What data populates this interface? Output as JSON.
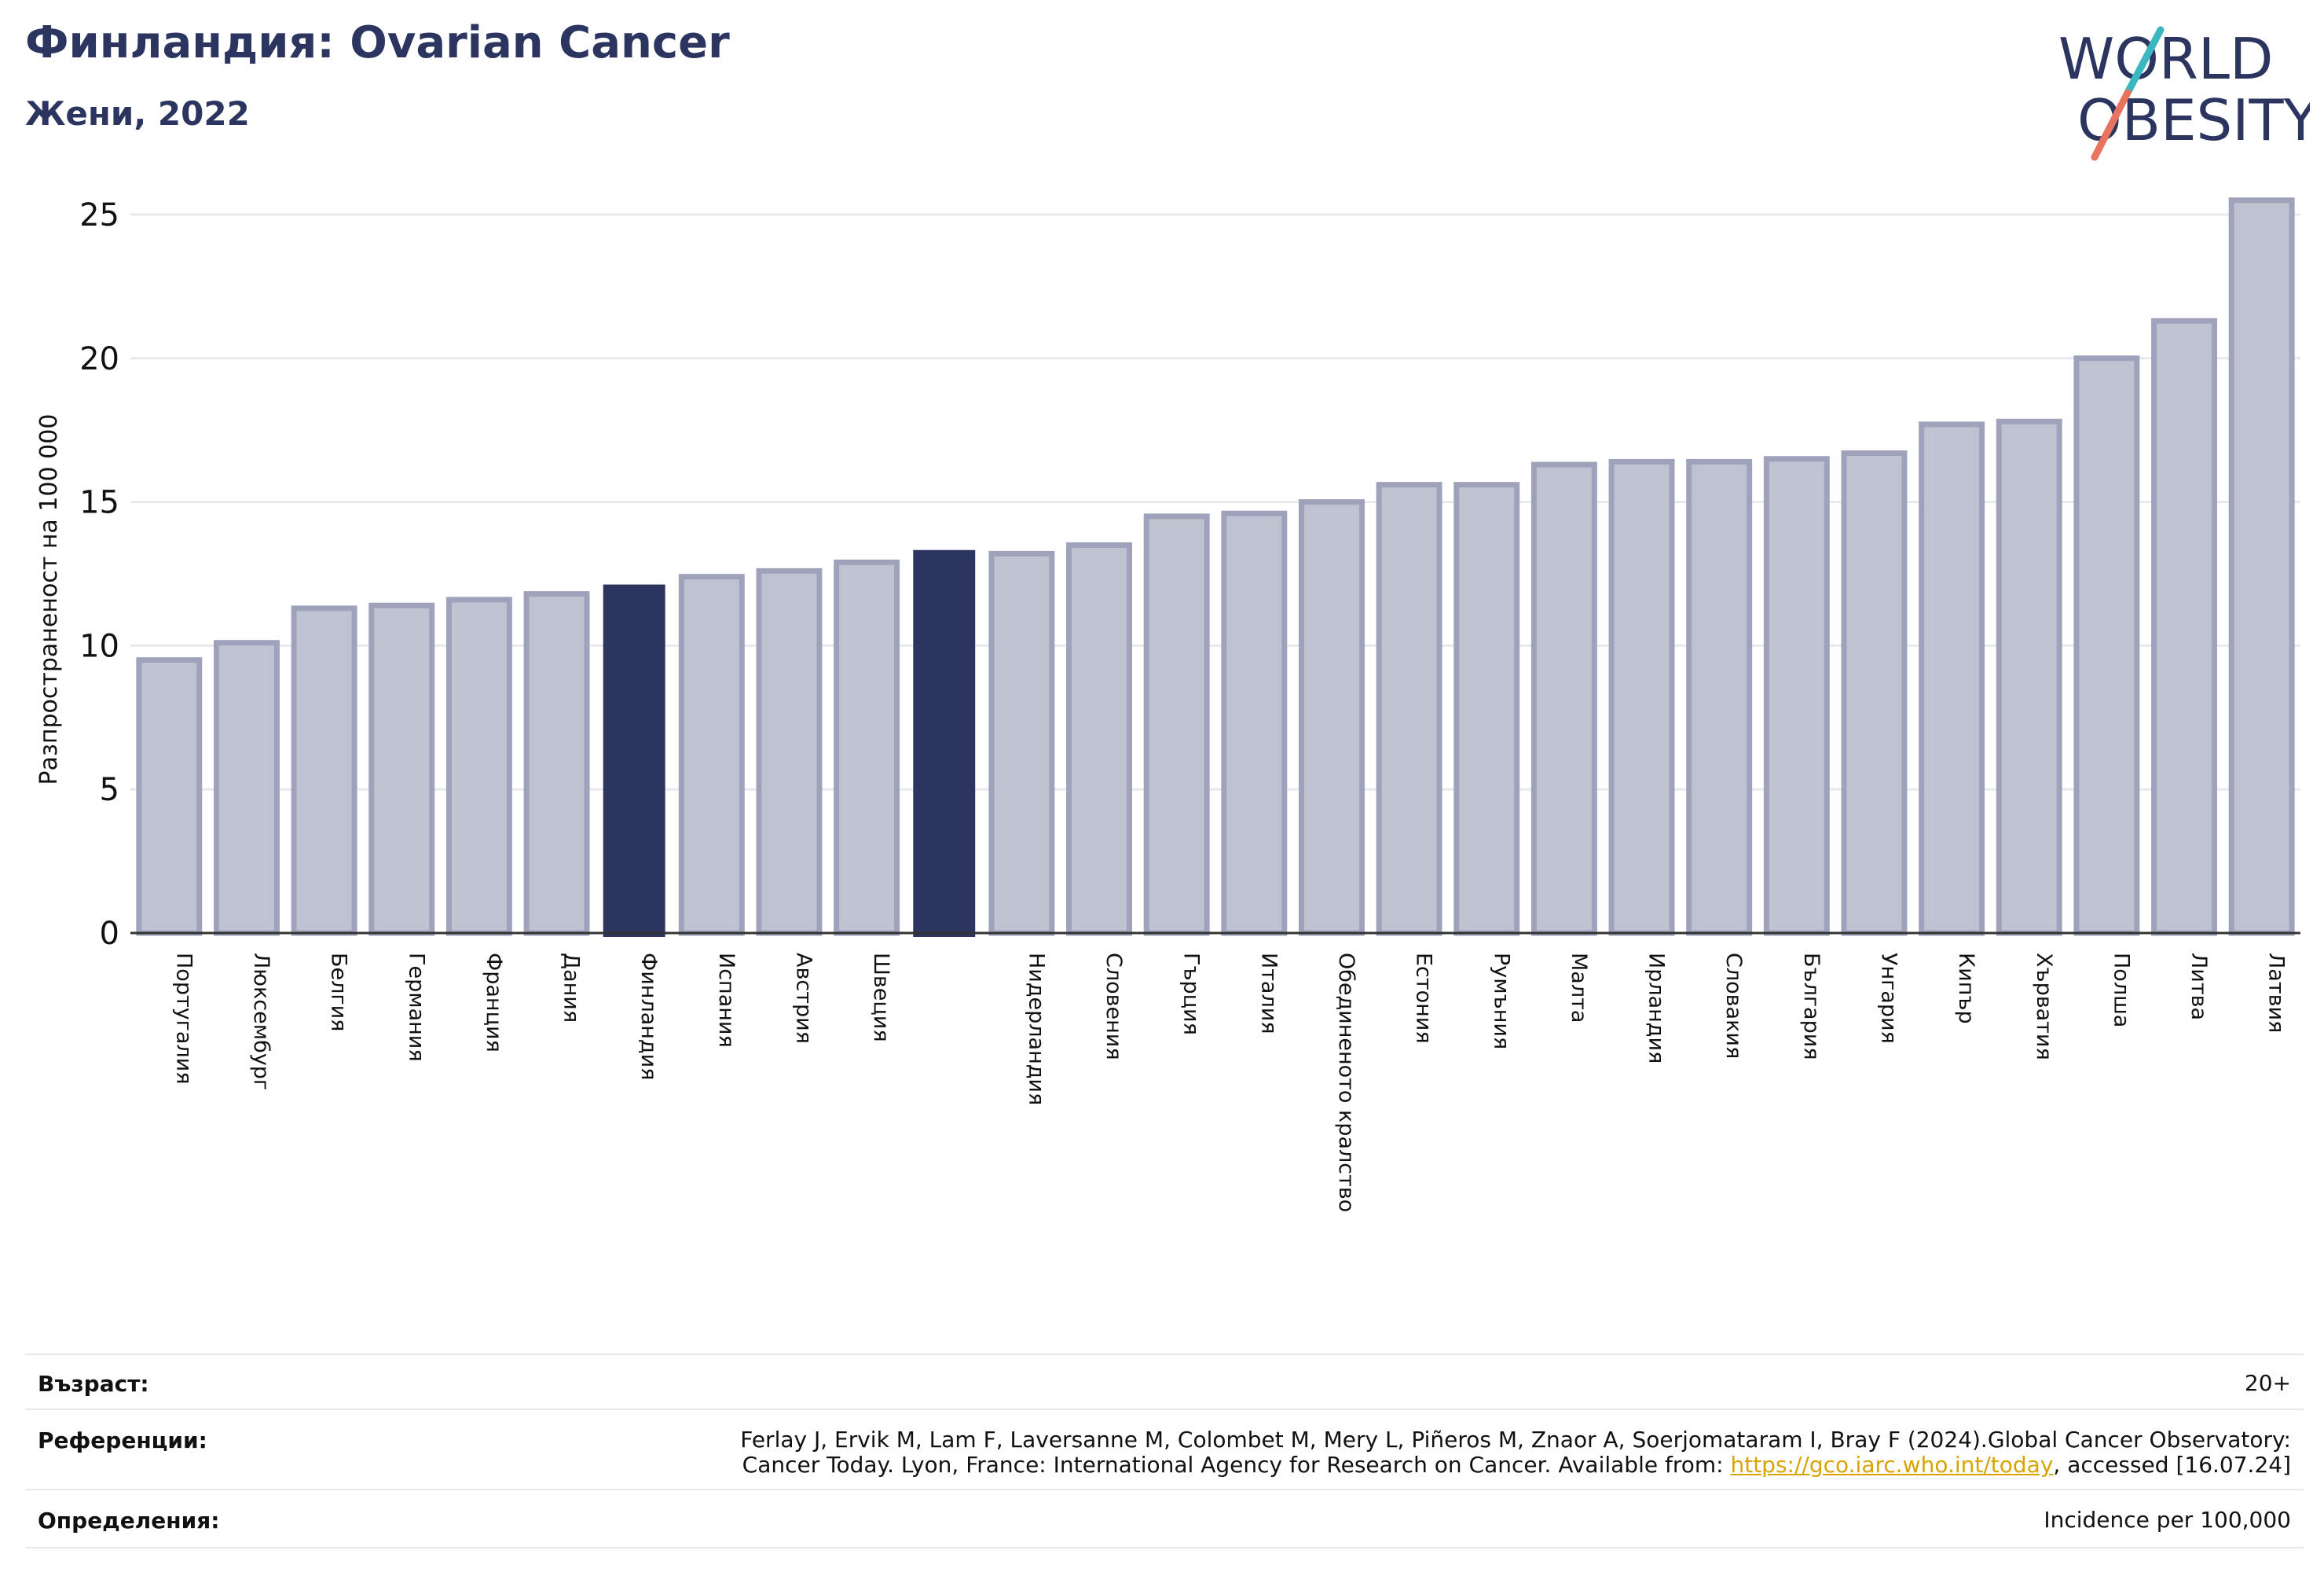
{
  "header": {
    "title": "Финландия: Ovarian Cancer",
    "subtitle": "Жени, 2022"
  },
  "logo": {
    "line1": "WORLD",
    "line2": "OBESITY",
    "colors": {
      "text": "#2b3560",
      "slash_top": "#3ab7c0",
      "slash_bottom": "#e8735e"
    }
  },
  "colors": {
    "bar": "#bfc3d1",
    "bar_border": "#9ea3bb",
    "highlight": "#2b3560",
    "axis": "#333333",
    "grid": "#e8e9ee"
  },
  "chart_data": {
    "type": "bar",
    "title": "",
    "xlabel": "",
    "ylabel": "Разпространеност  на 100 000",
    "ylim": [
      0,
      26.5
    ],
    "yticks": [
      0,
      5,
      10,
      15,
      20,
      25
    ],
    "grid": true,
    "categories": [
      "Португалия",
      "Люксембург",
      "Белгия",
      "Германия",
      "Франция",
      "Дания",
      "Финландия",
      "Испания",
      "Австрия",
      "Швеция",
      "",
      "Нидерландия",
      "Словения",
      "Гърция",
      "Италия",
      "Обединеното кралство",
      "Естония",
      "Румъния",
      "Малта",
      "Ирландия",
      "Словакия",
      "България",
      "Унгария",
      "Кипър",
      "Хърватия",
      "Полша",
      "Литва",
      "Латвия"
    ],
    "values": [
      9.5,
      10.1,
      11.3,
      11.4,
      11.6,
      11.8,
      12.1,
      12.4,
      12.6,
      12.9,
      13.3,
      13.2,
      13.5,
      14.5,
      14.6,
      15.0,
      15.6,
      15.6,
      16.3,
      16.4,
      16.4,
      16.5,
      16.7,
      17.7,
      17.8,
      20.0,
      21.3,
      25.5
    ],
    "highlighted": [
      6,
      10
    ]
  },
  "footer": {
    "age_label": "Възраст:",
    "age_value": "20+",
    "refs_label": "Референции:",
    "refs_line1": "Ferlay J, Ervik M, Lam F, Laversanne M, Colombet M, Mery L, Piñeros M, Znaor A, Soerjomataram I, Bray F (2024).Global Cancer Observatory:",
    "refs_line2_pre": "Cancer Today. Lyon, France: International Agency for Research on Cancer. Available from: ",
    "refs_link": "https://gco.iarc.who.int/today",
    "refs_line2_post": ", accessed [16.07.24]",
    "defs_label": "Определения:",
    "defs_value": "Incidence per 100,000"
  }
}
